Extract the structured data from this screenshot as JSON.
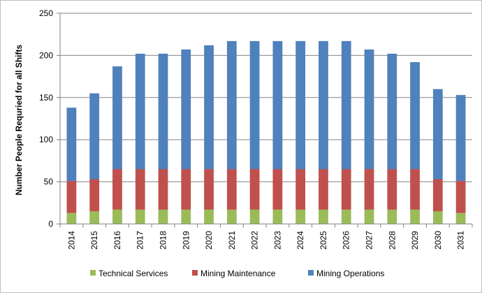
{
  "chart_data": {
    "type": "bar",
    "stacked": true,
    "title": "",
    "xlabel": "",
    "ylabel": "Number People Requried for all Shifts",
    "ylim": [
      0,
      250
    ],
    "yticks": [
      0,
      50,
      100,
      150,
      200,
      250
    ],
    "grid": true,
    "legend_position": "bottom",
    "categories": [
      "2014",
      "2015",
      "2016",
      "2017",
      "2018",
      "2019",
      "2020",
      "2021",
      "2022",
      "2023",
      "2024",
      "2025",
      "2026",
      "2027",
      "2028",
      "2029",
      "2030",
      "2031"
    ],
    "series": [
      {
        "name": "Technical Services",
        "color": "#9BBB59",
        "values": [
          13,
          15,
          17,
          17,
          17,
          17,
          17,
          17,
          17,
          17,
          17,
          17,
          17,
          17,
          17,
          17,
          15,
          13
        ]
      },
      {
        "name": "Mining Maintenance",
        "color": "#C0504D",
        "values": [
          38,
          38,
          48,
          48,
          48,
          48,
          48,
          48,
          48,
          48,
          48,
          48,
          48,
          48,
          48,
          48,
          38,
          38
        ]
      },
      {
        "name": "Mining Operations",
        "color": "#4F81BD",
        "values": [
          87,
          102,
          122,
          137,
          137,
          142,
          147,
          152,
          152,
          152,
          152,
          152,
          152,
          142,
          137,
          127,
          107,
          102
        ]
      }
    ]
  }
}
